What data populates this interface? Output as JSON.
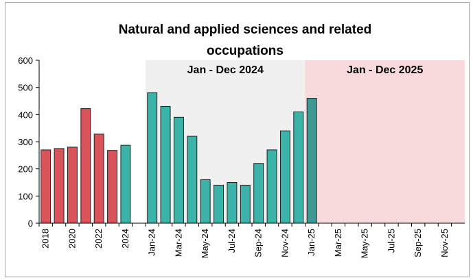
{
  "chart_data": {
    "type": "bar",
    "title": "Natural and applied sciences and related occupations",
    "categories": [
      "2018",
      null,
      "2020",
      null,
      "2022",
      null,
      "2024",
      null,
      "Jan-24",
      null,
      "Mar-24",
      null,
      "May-24",
      null,
      "Jul-24",
      null,
      "Sep-24",
      null,
      "Nov-24",
      null,
      "Jan-25",
      null,
      "Mar-25",
      null,
      "May-25",
      null,
      "Jul-25",
      null,
      "Sep-25",
      null,
      "Nov-25",
      null
    ],
    "values": [
      270,
      275,
      280,
      422,
      328,
      268,
      287,
      null,
      480,
      430,
      390,
      320,
      160,
      140,
      150,
      140,
      220,
      270,
      340,
      410,
      460,
      null,
      null,
      null,
      null,
      null,
      null,
      null,
      null,
      null,
      null,
      null
    ],
    "colors": [
      "#d9535a",
      "#d9535a",
      "#d9535a",
      "#d9535a",
      "#d9535a",
      "#d9535a",
      "#3bb3a9",
      null,
      "#3bb3a9",
      "#3bb3a9",
      "#3bb3a9",
      "#3bb3a9",
      "#3bb3a9",
      "#3bb3a9",
      "#3bb3a9",
      "#3bb3a9",
      "#3bb3a9",
      "#3bb3a9",
      "#3bb3a9",
      "#3bb3a9",
      "#3f9893",
      null,
      null,
      null,
      null,
      null,
      null,
      null,
      null,
      null,
      null,
      null
    ],
    "regions": [
      {
        "label": "Jan - Dec 2024",
        "color": "#f0f0f0"
      },
      {
        "label": "Jan - Dec 2025",
        "color": "#f8dadd"
      }
    ],
    "ylim": [
      0,
      600
    ],
    "yticks": [
      0,
      100,
      200,
      300,
      400,
      500,
      600
    ],
    "grid": false
  }
}
